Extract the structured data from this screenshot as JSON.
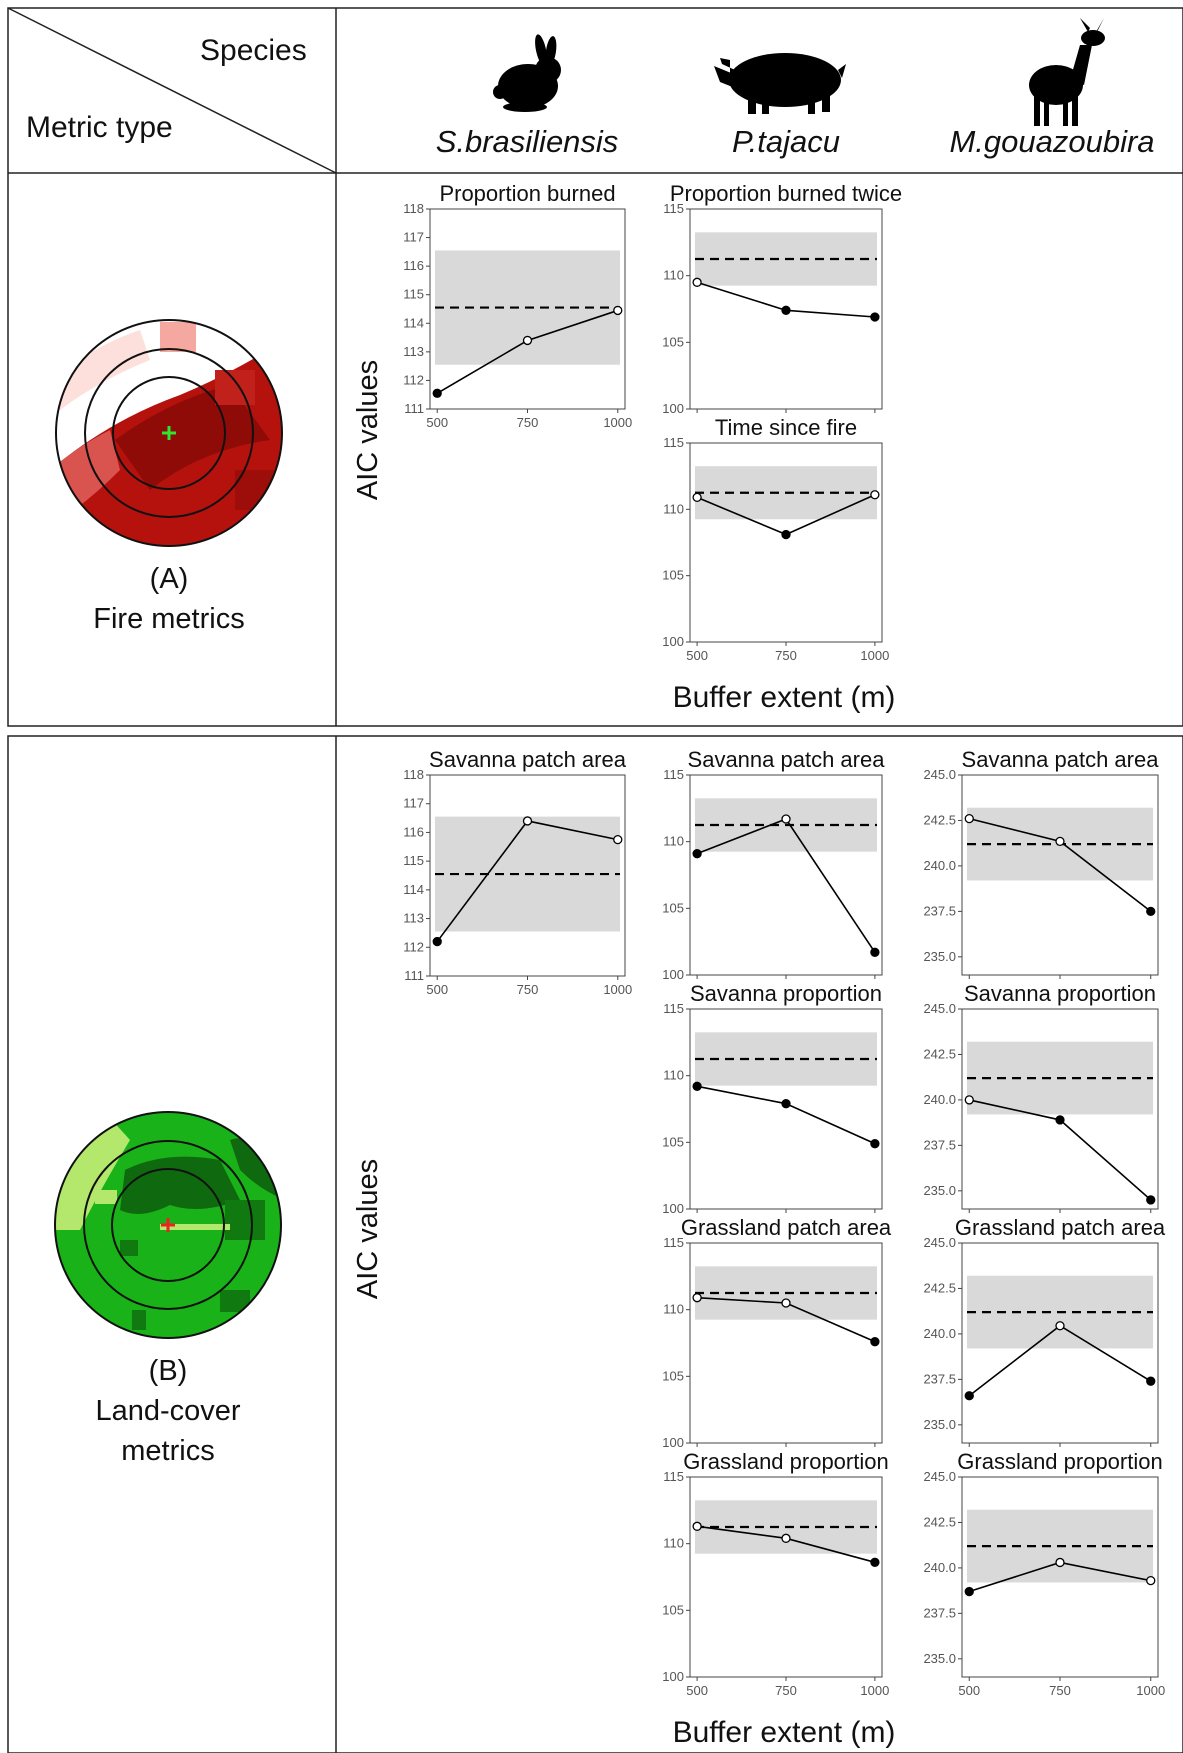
{
  "header": {
    "species_label": "Species",
    "metric_type_label": "Metric type",
    "species": [
      {
        "name": "S.brasiliensis",
        "icon": "rabbit-silhouette-icon"
      },
      {
        "name": "P.tajacu",
        "icon": "peccary-silhouette-icon"
      },
      {
        "name": "M.gouazoubira",
        "icon": "deer-silhouette-icon"
      }
    ]
  },
  "sections": [
    {
      "letter": "(A)",
      "name_lines": [
        "Fire metrics"
      ],
      "map_icon": "fire-buffer-map-icon"
    },
    {
      "letter": "(B)",
      "name_lines": [
        "Land-cover",
        "metrics"
      ],
      "map_icon": "landcover-buffer-map-icon"
    }
  ],
  "axis": {
    "ylabel": "AIC values",
    "xlabel": "Buffer extent (m)"
  },
  "colors": {
    "band": "#d9d9d9",
    "line": "#000000",
    "fire": "#b5120e",
    "landcover": "#19b319"
  },
  "chart_data": [
    {
      "id": "sb-fire-burned",
      "type": "line",
      "title": "Proportion burned",
      "x": [
        500,
        750,
        1000
      ],
      "y": [
        111.55,
        113.4,
        114.45
      ],
      "filled": [
        true,
        false,
        false
      ],
      "ref": 114.55,
      "band": [
        112.55,
        116.55
      ],
      "ylim": [
        111,
        118
      ],
      "yticks": [
        111,
        112,
        113,
        114,
        115,
        116,
        117,
        118
      ],
      "ytick_labels": [
        "111",
        "112",
        "113",
        "114",
        "115",
        "116",
        "117",
        "118"
      ],
      "xticks": [
        500,
        750,
        1000
      ]
    },
    {
      "id": "pt-fire-burned-twice",
      "type": "line",
      "title": "Proportion burned twice",
      "x": [
        500,
        750,
        1000
      ],
      "y": [
        109.5,
        107.4,
        106.9
      ],
      "filled": [
        false,
        true,
        true
      ],
      "ref": 111.25,
      "band": [
        109.25,
        113.25
      ],
      "ylim": [
        100,
        115
      ],
      "yticks": [
        100,
        105,
        110,
        115
      ],
      "ytick_labels": [
        "100",
        "105",
        "110",
        "115"
      ],
      "xticks": []
    },
    {
      "id": "pt-fire-time-since",
      "type": "line",
      "title": "Time since fire",
      "x": [
        500,
        750,
        1000
      ],
      "y": [
        110.9,
        108.1,
        111.1
      ],
      "filled": [
        false,
        true,
        false
      ],
      "ref": 111.25,
      "band": [
        109.25,
        113.25
      ],
      "ylim": [
        100,
        115
      ],
      "yticks": [
        100,
        105,
        110,
        115
      ],
      "ytick_labels": [
        "100",
        "105",
        "110",
        "115"
      ],
      "xticks": [
        500,
        750,
        1000
      ]
    },
    {
      "id": "sb-savanna-patch",
      "type": "line",
      "title": "Savanna patch area",
      "x": [
        500,
        750,
        1000
      ],
      "y": [
        112.2,
        116.4,
        115.75
      ],
      "filled": [
        true,
        false,
        false
      ],
      "ref": 114.55,
      "band": [
        112.55,
        116.55
      ],
      "ylim": [
        111,
        118
      ],
      "yticks": [
        111,
        112,
        113,
        114,
        115,
        116,
        117,
        118
      ],
      "ytick_labels": [
        "111",
        "112",
        "113",
        "114",
        "115",
        "116",
        "117",
        "118"
      ],
      "xticks": [
        500,
        750,
        1000
      ]
    },
    {
      "id": "pt-savanna-patch",
      "type": "line",
      "title": "Savanna patch area",
      "x": [
        500,
        750,
        1000
      ],
      "y": [
        109.1,
        111.7,
        101.7
      ],
      "filled": [
        true,
        false,
        true
      ],
      "ref": 111.25,
      "band": [
        109.25,
        113.25
      ],
      "ylim": [
        100,
        115
      ],
      "yticks": [
        100,
        105,
        110,
        115
      ],
      "ytick_labels": [
        "100",
        "105",
        "110",
        "115"
      ],
      "xticks": []
    },
    {
      "id": "mg-savanna-patch",
      "type": "line",
      "title": "Savanna patch area",
      "x": [
        500,
        750,
        1000
      ],
      "y": [
        242.6,
        241.35,
        237.5
      ],
      "filled": [
        false,
        false,
        true
      ],
      "ref": 241.2,
      "band": [
        239.2,
        243.2
      ],
      "ylim": [
        234.0,
        245.0
      ],
      "yticks": [
        235,
        237.5,
        240,
        242.5,
        245
      ],
      "ytick_labels": [
        "235.0",
        "237.5",
        "240.0",
        "242.5",
        "245.0"
      ],
      "xticks": []
    },
    {
      "id": "pt-savanna-prop",
      "type": "line",
      "title": "Savanna proportion",
      "x": [
        500,
        750,
        1000
      ],
      "y": [
        109.2,
        107.9,
        104.9
      ],
      "filled": [
        true,
        true,
        true
      ],
      "ref": 111.25,
      "band": [
        109.25,
        113.25
      ],
      "ylim": [
        100,
        115
      ],
      "yticks": [
        100,
        105,
        110,
        115
      ],
      "ytick_labels": [
        "100",
        "105",
        "110",
        "115"
      ],
      "xticks": []
    },
    {
      "id": "mg-savanna-prop",
      "type": "line",
      "title": "Savanna proportion",
      "x": [
        500,
        750,
        1000
      ],
      "y": [
        240.0,
        238.9,
        234.5
      ],
      "filled": [
        false,
        true,
        true
      ],
      "ref": 241.2,
      "band": [
        239.2,
        243.2
      ],
      "ylim": [
        234.0,
        245.0
      ],
      "yticks": [
        235,
        237.5,
        240,
        242.5,
        245
      ],
      "ytick_labels": [
        "235.0",
        "237.5",
        "240.0",
        "242.5",
        "245.0"
      ],
      "xticks": []
    },
    {
      "id": "pt-grass-patch",
      "type": "line",
      "title": "Grassland patch area",
      "x": [
        500,
        750,
        1000
      ],
      "y": [
        110.9,
        110.5,
        107.6
      ],
      "filled": [
        false,
        false,
        true
      ],
      "ref": 111.25,
      "band": [
        109.25,
        113.25
      ],
      "ylim": [
        100,
        115
      ],
      "yticks": [
        100,
        105,
        110,
        115
      ],
      "ytick_labels": [
        "100",
        "105",
        "110",
        "115"
      ],
      "xticks": []
    },
    {
      "id": "mg-grass-patch",
      "type": "line",
      "title": "Grassland patch area",
      "x": [
        500,
        750,
        1000
      ],
      "y": [
        236.6,
        240.45,
        237.4
      ],
      "filled": [
        true,
        false,
        true
      ],
      "ref": 241.2,
      "band": [
        239.2,
        243.2
      ],
      "ylim": [
        234.0,
        245.0
      ],
      "yticks": [
        235,
        237.5,
        240,
        242.5,
        245
      ],
      "ytick_labels": [
        "235.0",
        "237.5",
        "240.0",
        "242.5",
        "245.0"
      ],
      "xticks": []
    },
    {
      "id": "pt-grass-prop",
      "type": "line",
      "title": "Grassland proportion",
      "x": [
        500,
        750,
        1000
      ],
      "y": [
        111.3,
        110.4,
        108.6
      ],
      "filled": [
        false,
        false,
        true
      ],
      "ref": 111.25,
      "band": [
        109.25,
        113.25
      ],
      "ylim": [
        100,
        115
      ],
      "yticks": [
        100,
        105,
        110,
        115
      ],
      "ytick_labels": [
        "100",
        "105",
        "110",
        "115"
      ],
      "xticks": [
        500,
        750,
        1000
      ]
    },
    {
      "id": "mg-grass-prop",
      "type": "line",
      "title": "Grassland proportion",
      "x": [
        500,
        750,
        1000
      ],
      "y": [
        238.7,
        240.3,
        239.3
      ],
      "filled": [
        true,
        false,
        false
      ],
      "ref": 241.2,
      "band": [
        239.2,
        243.2
      ],
      "ylim": [
        234.0,
        245.0
      ],
      "yticks": [
        235,
        237.5,
        240,
        242.5,
        245
      ],
      "ytick_labels": [
        "235.0",
        "237.5",
        "240.0",
        "242.5",
        "245.0"
      ],
      "xticks": [
        500,
        750,
        1000
      ]
    }
  ]
}
